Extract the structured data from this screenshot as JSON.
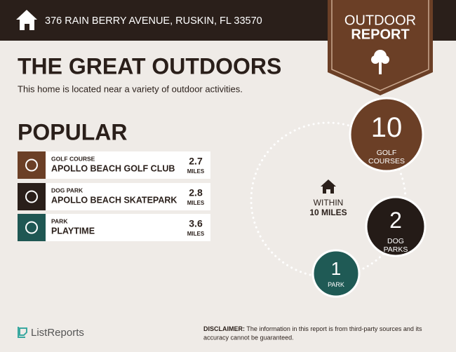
{
  "header": {
    "address": "376 RAIN BERRY AVENUE, RUSKIN, FL 33570",
    "badge_line1": "OUTDOOR",
    "badge_line2": "REPORT"
  },
  "title": "THE GREAT OUTDOORS",
  "subtitle": "This home is located near a variety of outdoor activities.",
  "popular": {
    "heading": "POPULAR",
    "items": [
      {
        "category": "GOLF COURSE",
        "name": "APOLLO BEACH GOLF CLUB",
        "distance": 2.7,
        "unit": "MILES"
      },
      {
        "category": "DOG PARK",
        "name": "APOLLO BEACH SKATEPARK",
        "distance": 2.8,
        "unit": "MILES"
      },
      {
        "category": "PARK",
        "name": "PLAYTIME",
        "distance": 3.6,
        "unit": "MILES"
      }
    ]
  },
  "summary": {
    "within_line1": "WITHIN",
    "within_line2": "10 MILES",
    "counts": [
      {
        "value": 10,
        "label_line1": "GOLF",
        "label_line2": "COURSES"
      },
      {
        "value": 2,
        "label_line1": "DOG",
        "label_line2": "PARKS"
      },
      {
        "value": 1,
        "label_line1": "PARK"
      }
    ]
  },
  "footer": {
    "brand": "ListReports",
    "disclaimer_label": "DISCLAIMER:",
    "disclaimer_text_line1": "The information in this report is from third-party sources and its",
    "disclaimer_text_line2": "accuracy cannot be guaranteed."
  }
}
